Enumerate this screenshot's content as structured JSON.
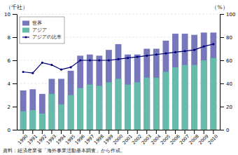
{
  "chart_data": {
    "type": "bar",
    "categories": [
      "1990",
      "1991",
      "1992",
      "1993",
      "1994",
      "1995",
      "1996",
      "1997",
      "1998",
      "1999",
      "2000",
      "2001",
      "2002",
      "2003",
      "2004",
      "2005",
      "2006",
      "2007",
      "2008",
      "2009",
      "2010"
    ],
    "series": [
      {
        "name": "世界",
        "type": "bar",
        "color": "#7777bb",
        "values": [
          3.4,
          3.5,
          3.1,
          4.4,
          4.4,
          5.1,
          6.4,
          6.5,
          6.4,
          6.9,
          7.4,
          6.5,
          6.5,
          7.0,
          7.0,
          7.7,
          8.3,
          8.3,
          8.2,
          8.4,
          8.4
        ]
      },
      {
        "name": "アジア",
        "type": "bar",
        "color": "#66bbaa",
        "values": [
          1.6,
          1.7,
          1.4,
          3.1,
          2.2,
          3.0,
          3.6,
          3.9,
          3.8,
          4.1,
          4.4,
          3.9,
          4.1,
          4.5,
          4.5,
          5.0,
          5.4,
          5.6,
          5.6,
          6.0,
          6.2
        ]
      },
      {
        "name": "アジアの比率",
        "type": "line",
        "axis": "y2",
        "color": "#000077",
        "marker": "circle",
        "values": [
          50,
          49,
          58,
          56,
          52,
          54,
          60,
          60,
          60,
          60,
          61,
          62,
          63,
          64,
          65,
          66,
          67,
          68,
          69,
          72,
          74
        ]
      }
    ],
    "ylabel": "（千社）",
    "y2label": "（%）",
    "ylim": [
      0,
      10
    ],
    "yticks": [
      0,
      2,
      4,
      6,
      8,
      10
    ],
    "y2lim": [
      0,
      100
    ],
    "y2ticks": [
      0,
      20,
      40,
      60,
      80,
      100
    ],
    "stacked": false,
    "grid": true,
    "legend": "upper left",
    "annotations": [
      "資料：経済産業省「海外事業活動基本調査」から作成。"
    ]
  }
}
